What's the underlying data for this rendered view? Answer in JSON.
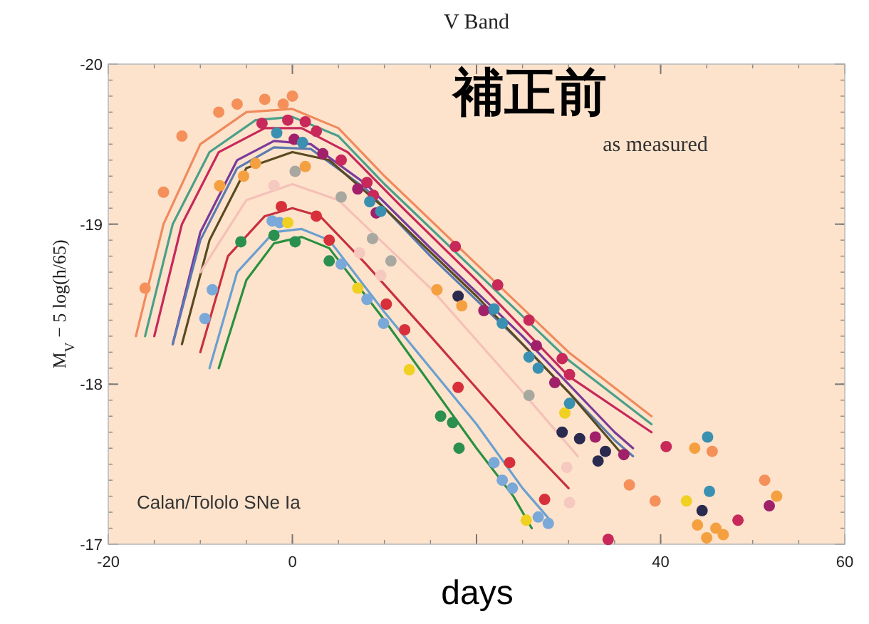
{
  "chart_data": {
    "type": "line",
    "title": "V Band",
    "xlabel": "days",
    "ylabel": "M$_{V}$ − 5 log(h/65)",
    "annotations": [
      "補正前",
      "as measured",
      "Calan/Tololo SNe Ia"
    ],
    "xlim": [
      -20,
      60
    ],
    "xticks": [
      -20,
      0,
      {
        "value": 20,
        "label": null
      },
      40,
      60
    ],
    "ylim": [
      -17,
      -20
    ],
    "yticks": [
      -20,
      -19,
      -18,
      -17
    ],
    "series": [
      {
        "type": "line",
        "color": "#f08a5d",
        "x": [
          -17,
          -14,
          -10,
          -5,
          0,
          5,
          10,
          20,
          30,
          39
        ],
        "values": [
          -18.3,
          -19.0,
          -19.5,
          -19.7,
          -19.72,
          -19.6,
          -19.3,
          -18.75,
          -18.2,
          -17.8
        ]
      },
      {
        "type": "line",
        "color": "#4aa08a",
        "x": [
          -16,
          -13,
          -9,
          -4,
          0,
          5,
          10,
          20,
          30,
          39
        ],
        "values": [
          -18.3,
          -19.0,
          -19.45,
          -19.65,
          -19.67,
          -19.55,
          -19.25,
          -18.7,
          -18.15,
          -17.75
        ]
      },
      {
        "type": "line",
        "color": "#c8285a",
        "x": [
          -15,
          -12,
          -8,
          -3,
          1,
          6,
          12,
          20,
          30,
          39
        ],
        "values": [
          -18.3,
          -19.0,
          -19.45,
          -19.6,
          -19.6,
          -19.45,
          -19.1,
          -18.65,
          -18.05,
          -17.7
        ]
      },
      {
        "type": "line",
        "color": "#7a3a9a",
        "x": [
          -13,
          -10,
          -6,
          -2,
          2,
          8,
          15,
          25,
          35,
          37
        ],
        "values": [
          -18.25,
          -18.95,
          -19.4,
          -19.52,
          -19.5,
          -19.25,
          -18.85,
          -18.3,
          -17.7,
          -17.6
        ]
      },
      {
        "type": "line",
        "color": "#5a7ab0",
        "x": [
          -13,
          -10,
          -6,
          -2,
          2,
          8,
          15,
          25,
          35,
          37
        ],
        "values": [
          -18.25,
          -18.9,
          -19.35,
          -19.48,
          -19.47,
          -19.22,
          -18.8,
          -18.25,
          -17.65,
          -17.55
        ]
      },
      {
        "type": "line",
        "color": "#5a4a20",
        "x": [
          -12,
          -9,
          -5,
          0,
          4,
          10,
          20,
          30,
          36
        ],
        "values": [
          -18.25,
          -18.9,
          -19.35,
          -19.45,
          -19.4,
          -19.1,
          -18.55,
          -17.95,
          -17.55
        ]
      },
      {
        "type": "line",
        "color": "#f5c0b8",
        "x": [
          -10,
          -5,
          0,
          5,
          15,
          25,
          31
        ],
        "values": [
          -18.7,
          -19.15,
          -19.25,
          -19.15,
          -18.6,
          -17.95,
          -17.55
        ]
      },
      {
        "type": "line",
        "color": "#c83040",
        "x": [
          -10,
          -7,
          -3,
          0,
          3,
          8,
          15,
          25,
          30
        ],
        "values": [
          -18.2,
          -18.8,
          -19.05,
          -19.1,
          -19.05,
          -18.75,
          -18.3,
          -17.65,
          -17.35
        ]
      },
      {
        "type": "line",
        "color": "#6aa0d0",
        "x": [
          -9,
          -6,
          -2,
          1,
          4,
          10,
          20,
          25,
          28
        ],
        "values": [
          -18.1,
          -18.7,
          -18.95,
          -18.97,
          -18.9,
          -18.45,
          -17.75,
          -17.35,
          -17.15
        ]
      },
      {
        "type": "line",
        "color": "#2a9040",
        "x": [
          -8,
          -5,
          -2,
          1,
          4,
          10,
          20,
          24,
          26
        ],
        "values": [
          -18.1,
          -18.65,
          -18.88,
          -18.92,
          -18.85,
          -18.4,
          -17.6,
          -17.3,
          -17.1
        ]
      },
      {
        "type": "scatter",
        "marker": "circle",
        "color": "#f5905a",
        "x": [
          -16,
          -14,
          -12,
          -8,
          -6,
          -3,
          -1,
          0,
          36.6,
          39.4,
          45.6,
          51.3
        ],
        "values": [
          -18.6,
          -19.2,
          -19.55,
          -19.7,
          -19.75,
          -19.78,
          -19.75,
          -19.8,
          -17.37,
          -17.27,
          -17.58,
          -17.4
        ]
      },
      {
        "type": "scatter",
        "marker": "circle",
        "color": "#c8285a",
        "x": [
          -3.3,
          -0.5,
          1.4,
          2.6,
          5.3,
          8.1,
          8.8,
          17.7,
          22.3,
          25.7,
          29.3,
          30.1,
          40.6,
          34.3,
          48.4
        ],
        "values": [
          -19.63,
          -19.65,
          -19.64,
          -19.58,
          -19.4,
          -19.26,
          -19.18,
          -18.86,
          -18.62,
          -18.4,
          -18.16,
          -18.06,
          -17.61,
          -17.03,
          -17.15
        ]
      },
      {
        "type": "scatter",
        "marker": "circle",
        "color": "#d8303a",
        "x": [
          -1.2,
          2.6,
          4,
          10.2,
          12.2,
          18,
          23.6,
          27.4
        ],
        "values": [
          -19.11,
          -19.05,
          -18.9,
          -18.5,
          -18.34,
          -17.98,
          -17.51,
          -17.28
        ]
      },
      {
        "type": "scatter",
        "marker": "circle",
        "color": "#2a9050",
        "x": [
          -5.6,
          -2,
          0.3,
          4,
          16.1,
          17.4,
          18.1
        ],
        "values": [
          -18.89,
          -18.93,
          -18.89,
          -18.77,
          -17.8,
          -17.76,
          -17.6
        ]
      },
      {
        "type": "scatter",
        "marker": "circle",
        "color": "#7aa8d8",
        "x": [
          -9.5,
          -8.7,
          -2.2,
          -1.4,
          5.3,
          8.1,
          9.9,
          21.9,
          22.8,
          23.9,
          26.7,
          27.8
        ],
        "values": [
          -18.41,
          -18.59,
          -19.02,
          -19.01,
          -18.75,
          -18.53,
          -18.38,
          -17.51,
          -17.4,
          -17.35,
          -17.17,
          -17.13
        ]
      },
      {
        "type": "scatter",
        "marker": "circle",
        "color": "#f0d020",
        "x": [
          -0.5,
          7.1,
          12.7,
          25.4,
          29.6,
          42.8
        ],
        "values": [
          -19.01,
          -18.6,
          -18.09,
          -17.15,
          -17.82,
          -17.27
        ]
      },
      {
        "type": "scatter",
        "marker": "circle",
        "color": "#a0206a",
        "x": [
          0.2,
          3.3,
          7.1,
          9.1,
          20.8,
          26.5,
          28.5,
          32.9,
          36,
          51.8
        ],
        "values": [
          -19.53,
          -19.44,
          -19.22,
          -19.07,
          -18.46,
          -18.24,
          -18.01,
          -17.67,
          -17.56,
          -17.24
        ]
      },
      {
        "type": "scatter",
        "marker": "circle",
        "color": "#3a90b0",
        "x": [
          -1.7,
          1.1,
          8.4,
          9.6,
          21.9,
          22.8,
          25.7,
          26.7,
          30.1,
          45.1,
          45.3
        ],
        "values": [
          -19.57,
          -19.51,
          -19.14,
          -19.08,
          -18.47,
          -18.38,
          -18.17,
          -18.1,
          -17.88,
          -17.67,
          -17.33
        ]
      },
      {
        "type": "scatter",
        "marker": "circle",
        "color": "#2a2a50",
        "x": [
          18,
          29.3,
          31.2,
          33.2,
          34,
          44.5
        ],
        "values": [
          -18.55,
          -17.7,
          -17.66,
          -17.52,
          -17.58,
          -17.21
        ]
      },
      {
        "type": "scatter",
        "marker": "circle",
        "color": "#a8a8a0",
        "x": [
          0.3,
          5.3,
          8.7,
          10.7,
          25.7
        ],
        "values": [
          -19.33,
          -19.17,
          -18.91,
          -18.77,
          -17.93
        ]
      },
      {
        "type": "scatter",
        "marker": "circle",
        "color": "#f5a040",
        "x": [
          -7.9,
          -5.3,
          -4,
          1.4,
          15.7,
          18.4,
          43.7,
          44,
          45,
          46,
          46.8,
          52.6
        ],
        "values": [
          -19.24,
          -19.3,
          -19.38,
          -19.36,
          -18.59,
          -18.49,
          -17.6,
          -17.12,
          -17.04,
          -17.1,
          -17.06,
          -17.3
        ]
      },
      {
        "type": "scatter",
        "marker": "circle",
        "color": "#f5c8c0",
        "x": [
          -2,
          7.3,
          9.6,
          29.8,
          30.1
        ],
        "values": [
          -19.24,
          -18.82,
          -18.68,
          -17.48,
          -17.26
        ]
      }
    ]
  }
}
